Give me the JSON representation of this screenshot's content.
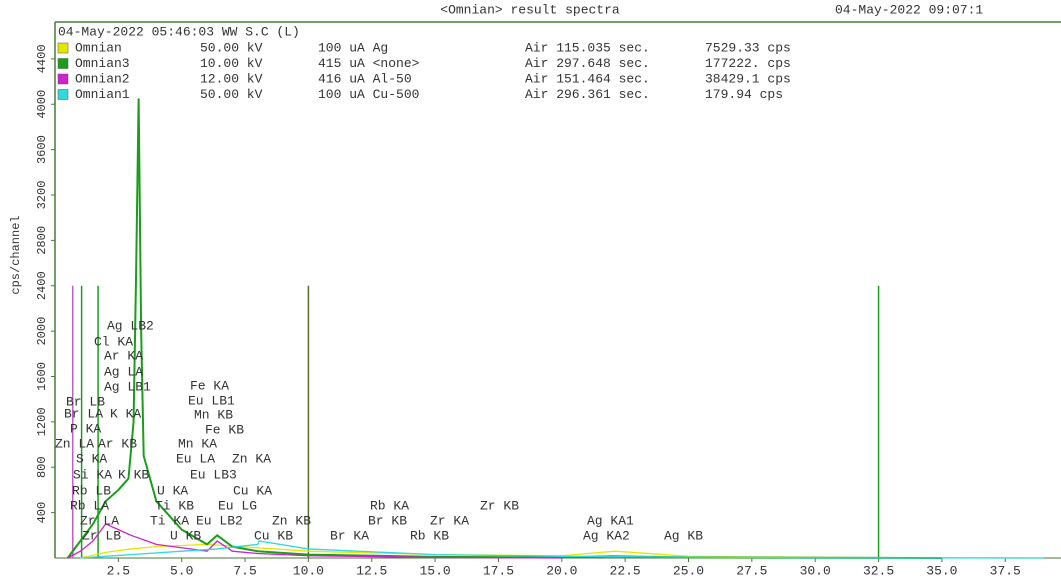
{
  "chart_data": {
    "type": "line",
    "title": "<Omnian> result spectra",
    "timestamp": "04-May-2022 09:07:1",
    "header": "04-May-2022 05:46:03 WW S.C (L)",
    "ylabel": "cps/channel",
    "xlim": [
      0,
      39.7
    ],
    "ylim": [
      0,
      4725
    ],
    "xticks": [
      {
        "value": 2.5,
        "label": "2.5"
      },
      {
        "value": 5,
        "label": "5.0"
      },
      {
        "value": 7.5,
        "label": "7.5"
      },
      {
        "value": 10,
        "label": "10.0"
      },
      {
        "value": 12.5,
        "label": "12.5"
      },
      {
        "value": 15,
        "label": "15.0"
      },
      {
        "value": 17.5,
        "label": "17.5"
      },
      {
        "value": 20,
        "label": "20.0"
      },
      {
        "value": 22.5,
        "label": "22.5"
      },
      {
        "value": 25,
        "label": "25.0"
      },
      {
        "value": 27.5,
        "label": "27.5"
      },
      {
        "value": 30,
        "label": "30.0"
      },
      {
        "value": 32.5,
        "label": "32.5"
      },
      {
        "value": 35,
        "label": "35.0"
      },
      {
        "value": 37.5,
        "label": "37.5"
      }
    ],
    "yticks": [
      400,
      800,
      1200,
      1600,
      2000,
      2400,
      2800,
      3200,
      3600,
      4000,
      4400
    ],
    "series": [
      {
        "name": "Omnian",
        "color": "#e6e600",
        "details": [
          "50.00 kV",
          "100 uA Ag",
          "Air 115.035 sec.",
          "7529.33 cps"
        ],
        "x": [
          1,
          2,
          3,
          4,
          6,
          8,
          10,
          15,
          20,
          22.1,
          25,
          30,
          39
        ],
        "values": [
          0,
          50,
          80,
          100,
          120,
          90,
          60,
          30,
          20,
          60,
          15,
          5,
          0
        ]
      },
      {
        "name": "Omnian3",
        "color": "#1a9e1a",
        "details": [
          "10.00 kV",
          "415 uA <none>",
          "Air 297.648 sec.",
          "177222. cps"
        ],
        "x": [
          0.5,
          1,
          1.5,
          2,
          2.5,
          2.9,
          3.1,
          3.2,
          3.3,
          3.4,
          3.5,
          4,
          5,
          6,
          6.4,
          7,
          8,
          10,
          15,
          20,
          22,
          25,
          30,
          35
        ],
        "values": [
          0,
          150,
          300,
          500,
          600,
          700,
          1200,
          2500,
          4050,
          2000,
          900,
          500,
          250,
          120,
          200,
          100,
          60,
          30,
          10,
          5,
          15,
          5,
          2,
          0
        ]
      },
      {
        "name": "Omnian2",
        "color": "#d020d0",
        "details": [
          "12.00 kV",
          "416 uA Al-50",
          "Air 151.464 sec.",
          "38429.1 cps"
        ],
        "x": [
          0.5,
          1,
          1.5,
          2,
          2.5,
          3,
          4,
          5,
          6,
          6.4,
          7,
          8,
          10,
          15,
          20
        ],
        "values": [
          0,
          60,
          150,
          300,
          250,
          200,
          120,
          90,
          60,
          150,
          60,
          40,
          20,
          5,
          0
        ]
      },
      {
        "name": "Omnian1",
        "color": "#30d8e0",
        "details": [
          "50.00 kV",
          "100 uA Cu-500",
          "Air 296.361 sec.",
          "179.94 cps"
        ],
        "x": [
          1,
          3,
          5,
          6.4,
          8,
          8.05,
          10,
          15,
          20,
          25,
          30,
          39
        ],
        "values": [
          0,
          30,
          60,
          80,
          120,
          150,
          80,
          30,
          15,
          8,
          2,
          0
        ]
      }
    ],
    "marker_lines": {
      "x": [
        0.7,
        1.05,
        1.7,
        10,
        32.5
      ],
      "colors": [
        "#c060c0",
        "#1a9e1a",
        "#1a9e1a",
        "#556b2f",
        "#1a9e1a"
      ],
      "height": 2400
    },
    "peak_labels": [
      "Ag LB2",
      "Cl KA",
      "Ar KA",
      "Ag LA",
      "Ag LB1",
      "Br LB",
      "Br LA",
      "K KA",
      "P KA",
      "Zn LA",
      "Ar KB",
      "S KA",
      "Si KA",
      "K KB",
      "Rb LB",
      "Rb LA",
      "Zr LA",
      "Ti KA",
      "Zr LB",
      "U KB",
      "Fe KA",
      "Eu LB1",
      "Mn KB",
      "Fe KB",
      "Mn KA",
      "Eu LA",
      "Zn KA",
      "Eu LB3",
      "U KA",
      "Cu KA",
      "Ti KB",
      "Eu LG",
      "Eu LB2",
      "Zn KB",
      "Cu KB",
      "Br KA",
      "Rb KA",
      "Br KB",
      "Zr KA",
      "Rb KB",
      "Zr KB",
      "Ag KA1",
      "Ag KA2",
      "Ag KB"
    ]
  }
}
